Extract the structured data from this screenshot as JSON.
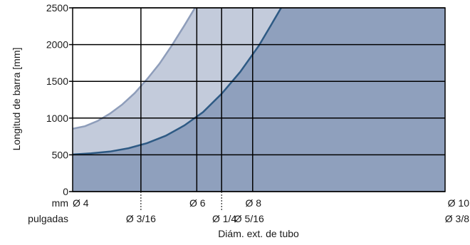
{
  "chart_data": {
    "type": "area",
    "ylabel": "Longitud de barra [mm]",
    "xlabel": "Diám. ext. de tubo",
    "ylim": [
      0,
      2500
    ],
    "y_ticks": [
      0,
      500,
      1000,
      1500,
      2000,
      2500
    ],
    "xlim": [
      4,
      10
    ],
    "grid": true,
    "x_unit_rows": [
      {
        "unit": "mm",
        "ticks": [
          {
            "x": 4,
            "label": "Ø 4"
          },
          {
            "x": 6,
            "label": "Ø 6"
          },
          {
            "x": 6.9,
            "label": "Ø 8"
          },
          {
            "x": 10,
            "label": "Ø 10"
          }
        ]
      },
      {
        "unit": "pulgadas",
        "ticks": [
          {
            "x": 5.1,
            "label": "Ø 3/16"
          },
          {
            "x": 6.4,
            "label": "Ø 1/4"
          },
          {
            "x": 6.9,
            "label": "Ø 5/16"
          },
          {
            "x": 10,
            "label": "Ø 3/8"
          }
        ]
      }
    ],
    "series": [
      {
        "color": "#c3cbdb",
        "line_color": "#8e9dba",
        "x": [
          4.0,
          4.2,
          4.4,
          4.6,
          4.8,
          5.0,
          5.2,
          5.4,
          5.6,
          5.8,
          6.0,
          6.1
        ],
        "values": [
          855,
          890,
          960,
          1060,
          1185,
          1340,
          1530,
          1740,
          1990,
          2260,
          2540,
          2700
        ]
      },
      {
        "color": "#8fa0bd",
        "line_color": "#2e5a84",
        "x": [
          4.0,
          4.3,
          4.6,
          4.9,
          5.2,
          5.5,
          5.8,
          6.1,
          6.4,
          6.7,
          7.0,
          7.2,
          7.4
        ],
        "values": [
          505,
          520,
          545,
          590,
          660,
          760,
          900,
          1080,
          1330,
          1630,
          1985,
          2270,
          2560
        ]
      }
    ]
  }
}
